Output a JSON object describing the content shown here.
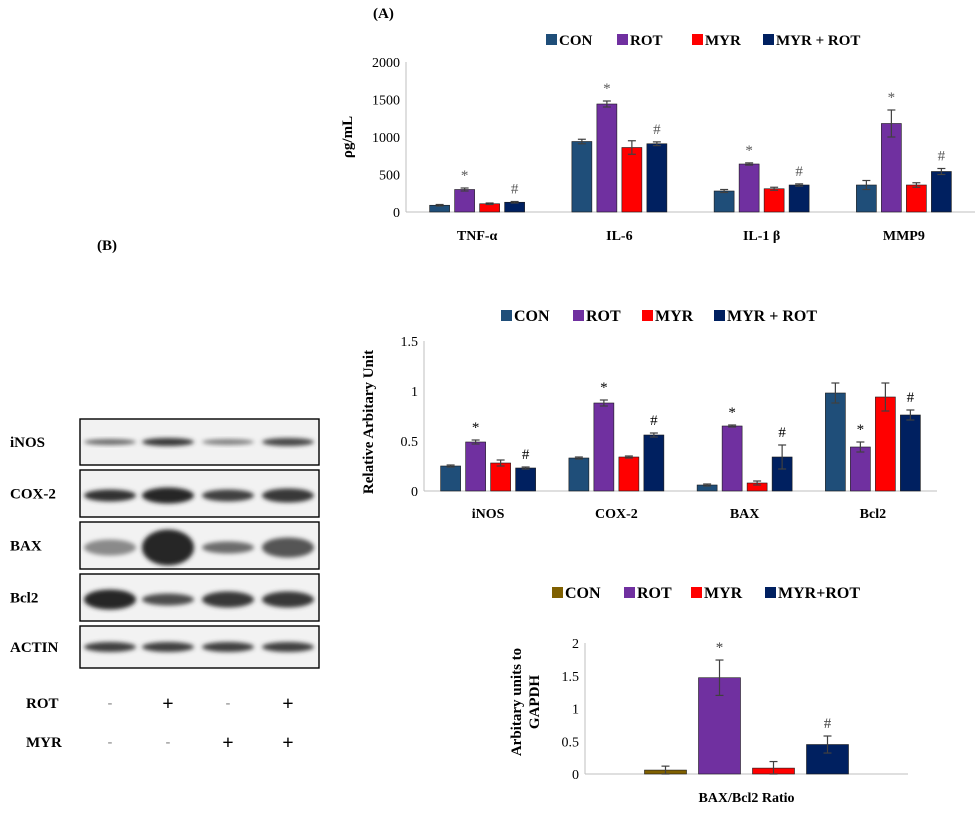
{
  "panel_a_label": "(A)",
  "panel_b_label": "(B)",
  "colors": {
    "con": "#1f4e79",
    "rot": "#7030a0",
    "myr": "#ff0000",
    "myr_rot": "#002060",
    "con_ratio": "#7f6000",
    "error": "#404040",
    "sig": "#595959"
  },
  "blot": {
    "rows": [
      "iNOS",
      "COX-2",
      "BAX",
      "Bcl2",
      "ACTIN"
    ],
    "treatment_rows": [
      {
        "label": "ROT",
        "marks": [
          "-",
          "+",
          "-",
          "+"
        ]
      },
      {
        "label": "MYR",
        "marks": [
          "-",
          "-",
          "+",
          "+"
        ]
      }
    ]
  },
  "chart_data": [
    {
      "type": "bar",
      "title": "",
      "ylabel": "ρg/mL",
      "xlabel": "",
      "ylim": [
        0,
        2000
      ],
      "yticks": [
        "0",
        "500",
        "1000",
        "1500",
        "2000"
      ],
      "yticks_values": [
        0,
        500,
        1000,
        1500,
        2000
      ],
      "categories": [
        "TNF-α",
        "IL-6",
        "IL-1 β",
        "MMP9"
      ],
      "legend": [
        "CON",
        "ROT",
        "MYR",
        "MYR + ROT"
      ],
      "series": [
        {
          "name": "CON",
          "values": [
            90,
            940,
            280,
            360
          ],
          "errors": [
            10,
            30,
            20,
            60
          ]
        },
        {
          "name": "ROT",
          "values": [
            300,
            1440,
            640,
            1180
          ],
          "errors": [
            20,
            40,
            15,
            180
          ]
        },
        {
          "name": "MYR",
          "values": [
            110,
            860,
            310,
            360
          ],
          "errors": [
            10,
            90,
            20,
            30
          ]
        },
        {
          "name": "MYR + ROT",
          "values": [
            130,
            910,
            360,
            540
          ],
          "errors": [
            10,
            25,
            15,
            40
          ]
        }
      ],
      "annotations": [
        {
          "category": 0,
          "series": 1,
          "text": "*"
        },
        {
          "category": 0,
          "series": 3,
          "text": "#"
        },
        {
          "category": 1,
          "series": 1,
          "text": "*"
        },
        {
          "category": 1,
          "series": 3,
          "text": "#"
        },
        {
          "category": 2,
          "series": 1,
          "text": "*"
        },
        {
          "category": 2,
          "series": 3,
          "text": "#"
        },
        {
          "category": 3,
          "series": 1,
          "text": "*"
        },
        {
          "category": 3,
          "series": 3,
          "text": "#"
        }
      ]
    },
    {
      "type": "bar",
      "title": "",
      "ylabel": "Relative Arbitary Unit",
      "xlabel": "",
      "ylim": [
        0,
        1.5
      ],
      "yticks": [
        "0",
        "0.5",
        "1",
        "1.5"
      ],
      "yticks_values": [
        0,
        0.5,
        1,
        1.5
      ],
      "categories": [
        "iNOS",
        "COX-2",
        "BAX",
        "Bcl2"
      ],
      "legend": [
        "CON",
        "ROT",
        "MYR",
        "MYR + ROT"
      ],
      "series": [
        {
          "name": "CON",
          "values": [
            0.25,
            0.33,
            0.06,
            0.98
          ],
          "errors": [
            0.01,
            0.01,
            0.01,
            0.1
          ]
        },
        {
          "name": "ROT",
          "values": [
            0.49,
            0.88,
            0.65,
            0.44
          ],
          "errors": [
            0.02,
            0.03,
            0.01,
            0.05
          ]
        },
        {
          "name": "MYR",
          "values": [
            0.28,
            0.34,
            0.08,
            0.94
          ],
          "errors": [
            0.03,
            0.01,
            0.02,
            0.14
          ]
        },
        {
          "name": "MYR + ROT",
          "values": [
            0.23,
            0.56,
            0.34,
            0.76
          ],
          "errors": [
            0.01,
            0.02,
            0.12,
            0.05
          ]
        }
      ],
      "annotations": [
        {
          "category": 0,
          "series": 1,
          "text": "*"
        },
        {
          "category": 0,
          "series": 3,
          "text": "#"
        },
        {
          "category": 1,
          "series": 1,
          "text": "*"
        },
        {
          "category": 1,
          "series": 3,
          "text": "#"
        },
        {
          "category": 2,
          "series": 1,
          "text": "*"
        },
        {
          "category": 2,
          "series": 3,
          "text": "#"
        },
        {
          "category": 3,
          "series": 1,
          "text": "*"
        },
        {
          "category": 3,
          "series": 3,
          "text": "#"
        }
      ]
    },
    {
      "type": "bar",
      "title": "",
      "ylabel": "Arbitary units to GAPDH",
      "ylabel_lines": [
        "Arbitary units to",
        "GAPDH"
      ],
      "xlabel": "BAX/Bcl2 Ratio",
      "ylim": [
        0,
        2
      ],
      "yticks": [
        "0",
        "0.5",
        "1",
        "1.5",
        "2"
      ],
      "yticks_values": [
        0,
        0.5,
        1,
        1.5,
        2
      ],
      "categories": [
        "BAX/Bcl2 Ratio"
      ],
      "legend": [
        "CON",
        "ROT",
        "MYR",
        "MYR+ROT"
      ],
      "series": [
        {
          "name": "CON",
          "values": [
            0.06
          ],
          "errors": [
            0.06
          ]
        },
        {
          "name": "ROT",
          "values": [
            1.47
          ],
          "errors": [
            0.27
          ]
        },
        {
          "name": "MYR",
          "values": [
            0.09
          ],
          "errors": [
            0.1
          ]
        },
        {
          "name": "MYR+ROT",
          "values": [
            0.45
          ],
          "errors": [
            0.13
          ]
        }
      ],
      "annotations": [
        {
          "category": 0,
          "series": 1,
          "text": "*"
        },
        {
          "category": 0,
          "series": 3,
          "text": "#"
        }
      ]
    }
  ]
}
